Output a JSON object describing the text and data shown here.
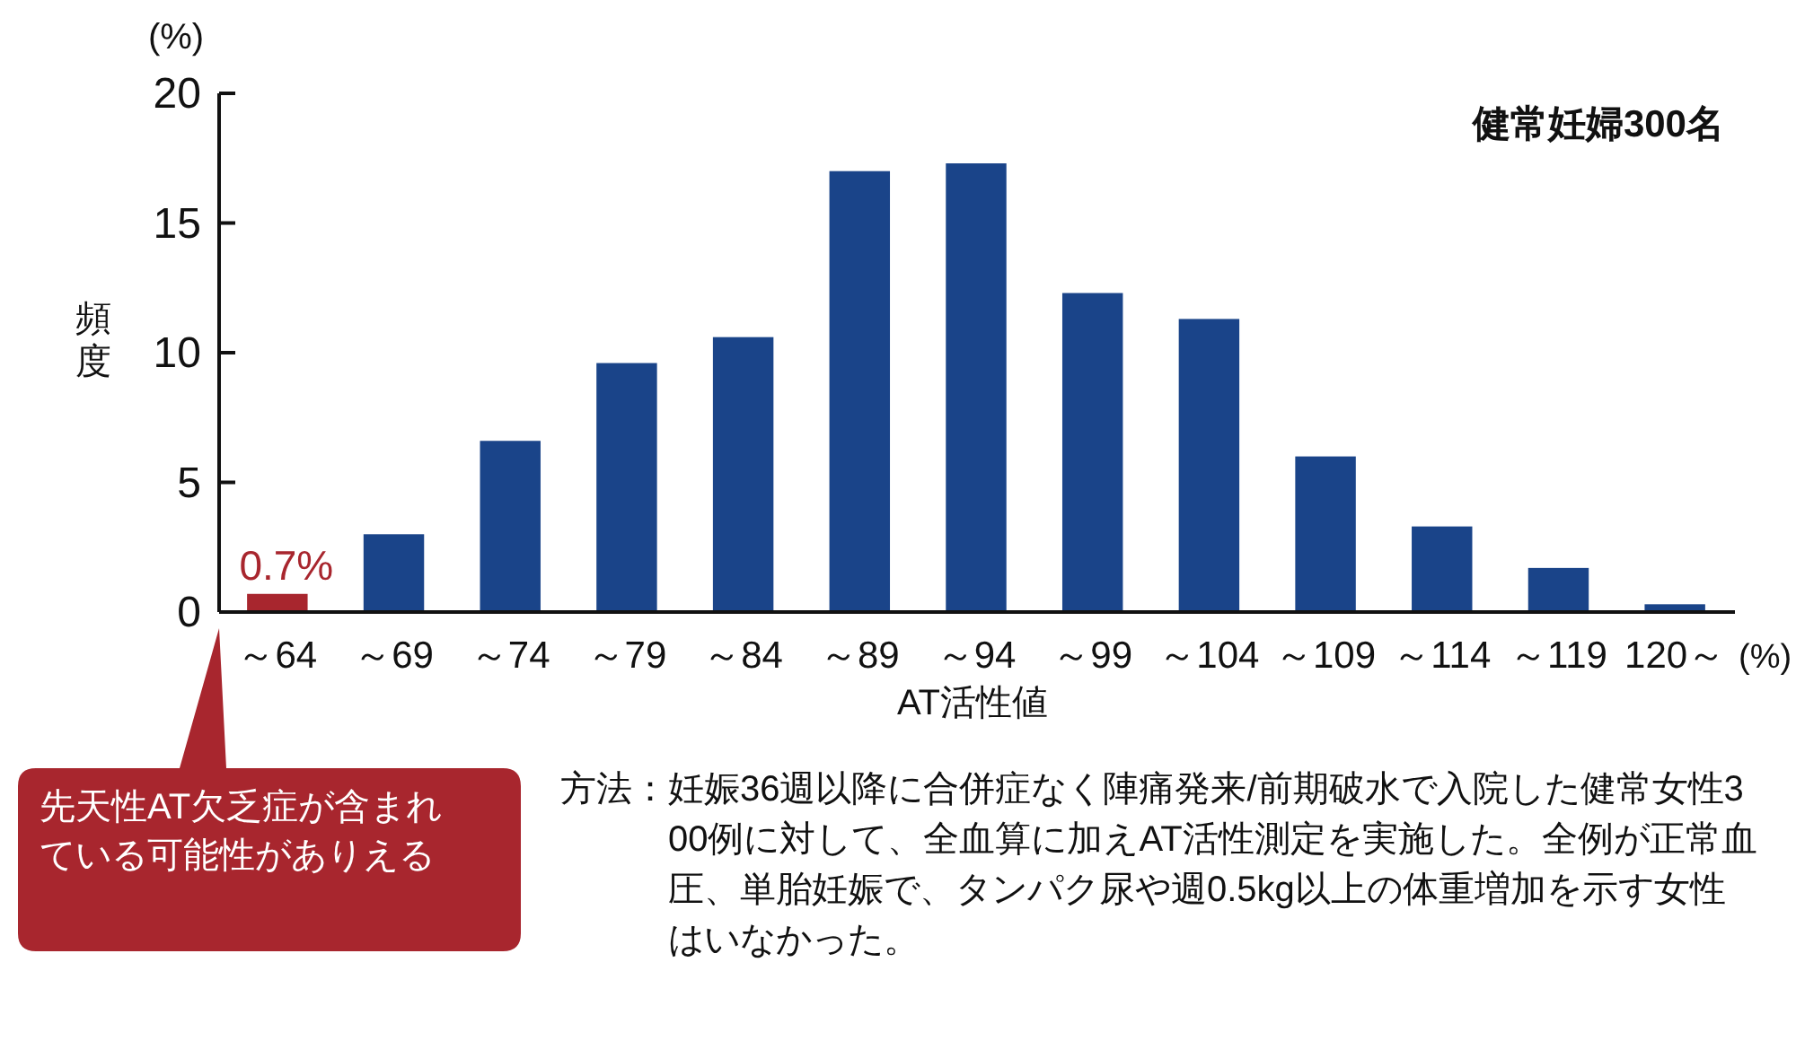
{
  "chart_data": {
    "type": "bar",
    "xlabel": "AT活性値",
    "ylabel": "頻度",
    "categories": [
      "～64",
      "～69",
      "～74",
      "～79",
      "～84",
      "～89",
      "～94",
      "～99",
      "～104",
      "～109",
      "～114",
      "～119",
      "120～"
    ],
    "values": [
      0.7,
      3.0,
      6.6,
      9.6,
      10.6,
      17.0,
      17.3,
      12.3,
      11.3,
      6.0,
      3.3,
      1.7,
      0.3
    ],
    "colors": [
      "#a8262e",
      "#1a4489",
      "#1a4489",
      "#1a4489",
      "#1a4489",
      "#1a4489",
      "#1a4489",
      "#1a4489",
      "#1a4489",
      "#1a4489",
      "#1a4489",
      "#1a4489",
      "#1a4489"
    ],
    "value_labels": [
      "0.7%",
      null,
      null,
      null,
      null,
      null,
      null,
      null,
      null,
      null,
      null,
      null,
      null
    ],
    "ylim": [
      0,
      20
    ],
    "yticks": [
      0,
      5,
      10,
      15,
      20
    ],
    "grid": false,
    "annotations": [
      "健常妊婦300名",
      "(%)",
      "(%)",
      "先天性AT欠乏症が含まれている可能性がありえる",
      "方法：妊娠36週以降に合併症なく陣痛発来/前期破水で入院した健常女性300例に対して、全血算に加えAT活性測定を実施した。全例が正常血圧、単胎妊娠で、タンパク尿や週0.5kg以上の体重増加を示す女性はいなかった。"
    ]
  }
}
